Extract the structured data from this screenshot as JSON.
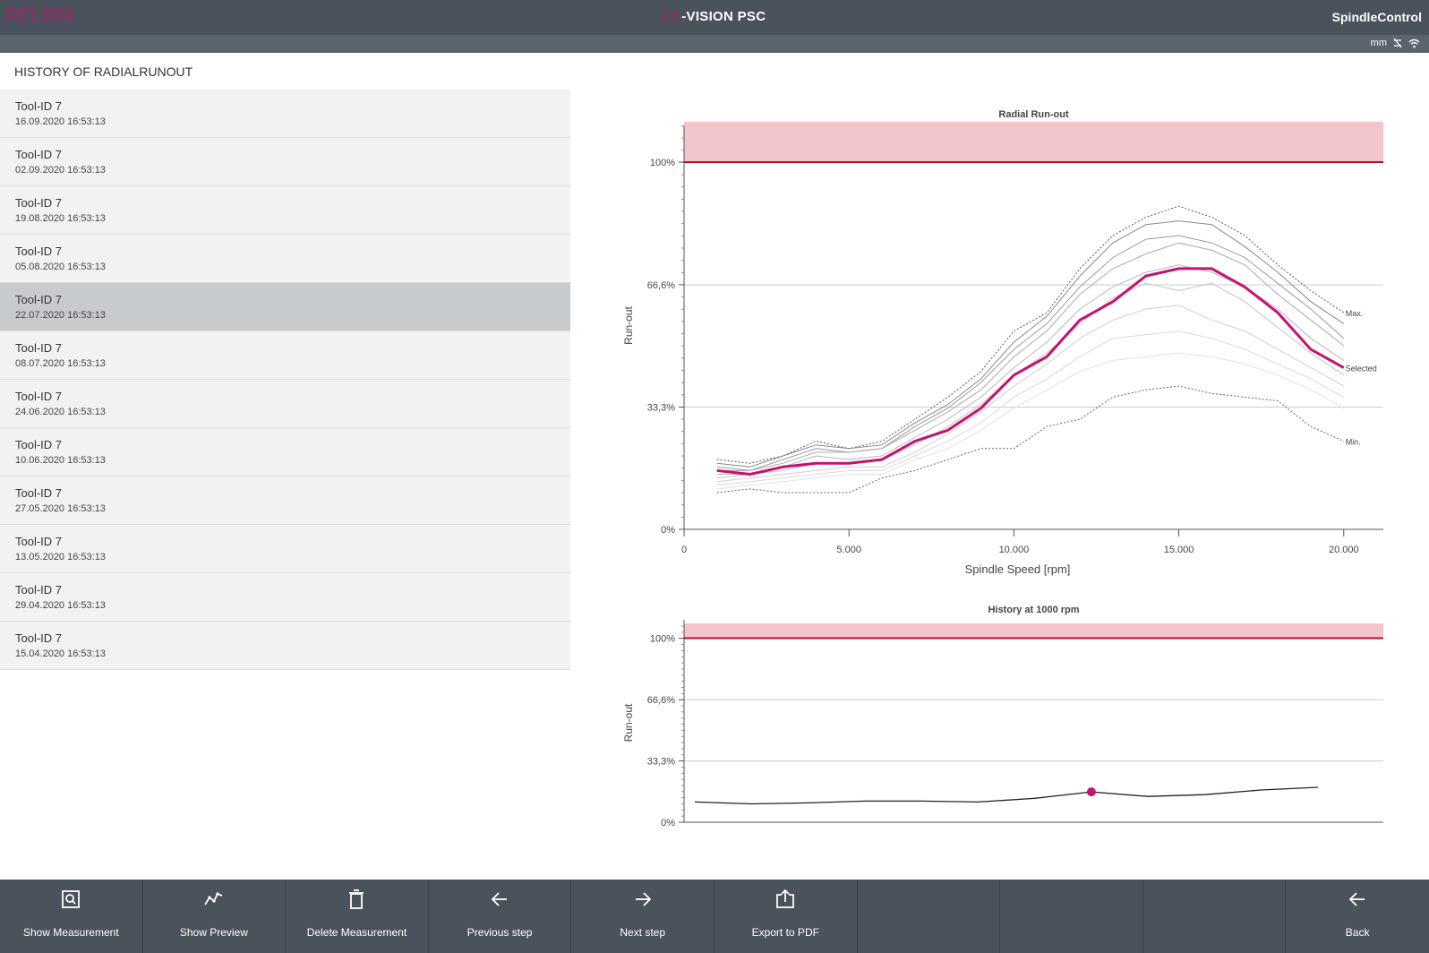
{
  "header": {
    "logo_text": "RELIMA",
    "title_accent": "LC",
    "title_main": "-VISION PSC",
    "brand": "SpindleControl"
  },
  "status": {
    "unit": "mm",
    "icons": [
      "no-connection-icon",
      "wifi-icon"
    ]
  },
  "history": {
    "title": "HISTORY OF RADIALRUNOUT",
    "selected_index": 4,
    "items": [
      {
        "name": "Tool-ID 7",
        "date": "16.09.2020 16:53:13"
      },
      {
        "name": "Tool-ID 7",
        "date": "02.09.2020 16:53:13"
      },
      {
        "name": "Tool-ID 7",
        "date": "19.08.2020 16:53:13"
      },
      {
        "name": "Tool-ID 7",
        "date": "05.08.2020 16:53:13"
      },
      {
        "name": "Tool-ID 7",
        "date": "22.07.2020 16:53:13"
      },
      {
        "name": "Tool-ID 7",
        "date": "08.07.2020 16:53:13"
      },
      {
        "name": "Tool-ID 7",
        "date": "24.06.2020 16:53:13"
      },
      {
        "name": "Tool-ID 7",
        "date": "10.06.2020 16:53:13"
      },
      {
        "name": "Tool-ID 7",
        "date": "27.05.2020 16:53:13"
      },
      {
        "name": "Tool-ID 7",
        "date": "13.05.2020 16:53:13"
      },
      {
        "name": "Tool-ID 7",
        "date": "29.04.2020 16:53:13"
      },
      {
        "name": "Tool-ID 7",
        "date": "15.04.2020 16:53:13"
      }
    ]
  },
  "chart_data": [
    {
      "type": "line",
      "title": "Radial Run-out",
      "xlabel": "Spindle Speed [rpm]",
      "ylabel": "Run-out",
      "xlim": [
        0,
        21200
      ],
      "ylim": [
        0,
        110
      ],
      "xticks": [
        0,
        5000,
        10000,
        15000,
        20000
      ],
      "xtick_labels": [
        "0",
        "5.000",
        "10.000",
        "15.000",
        "20.000"
      ],
      "yticks": [
        0,
        33.3,
        66.6,
        100
      ],
      "ytick_labels": [
        "0%",
        "33,3%",
        "66,6%",
        "100%"
      ],
      "limit": 100,
      "limit_band": [
        100,
        111
      ],
      "grid": true,
      "x": [
        1000,
        2000,
        3000,
        4000,
        5000,
        6000,
        7000,
        8000,
        9000,
        10000,
        11000,
        12000,
        13000,
        14000,
        15000,
        16000,
        17000,
        18000,
        19000,
        20000
      ],
      "selected_color": "#c4126e",
      "limit_color": "#c00a2a",
      "band_color": "#f2c5cb",
      "series": [
        {
          "name": "Max.",
          "style": "dotted",
          "color": "#555555",
          "values": [
            19,
            18,
            20,
            24,
            22,
            24,
            30,
            36,
            43,
            54,
            59,
            71,
            80,
            85,
            88,
            85,
            80,
            72,
            65,
            59
          ]
        },
        {
          "name": "",
          "style": "solid",
          "color": "#888888",
          "values": [
            18,
            17,
            20,
            23,
            22,
            23,
            29,
            34,
            41,
            51,
            58,
            69,
            78,
            83,
            84,
            83,
            77,
            70,
            62,
            56
          ]
        },
        {
          "name": "",
          "style": "solid",
          "color": "#9a9a9a",
          "values": [
            17,
            16,
            19,
            22,
            21,
            22,
            28,
            33,
            40,
            49,
            56,
            66,
            74,
            79,
            80,
            78,
            74,
            67,
            60,
            52
          ]
        },
        {
          "name": "",
          "style": "solid",
          "color": "#aaaaaa",
          "values": [
            16,
            16,
            18,
            21,
            21,
            22,
            27,
            32,
            38,
            47,
            54,
            64,
            71,
            75,
            78,
            76,
            72,
            64,
            57,
            50
          ]
        },
        {
          "name": "",
          "style": "solid",
          "color": "#b8b8b8",
          "values": [
            15,
            15,
            17,
            20,
            19,
            20,
            25,
            30,
            36,
            44,
            51,
            60,
            66,
            70,
            72,
            70,
            66,
            60,
            52,
            46
          ]
        },
        {
          "name": "",
          "style": "solid",
          "color": "#c4c4c4",
          "values": [
            14,
            15,
            16,
            18,
            18,
            19,
            23,
            28,
            34,
            42,
            48,
            56,
            63,
            67,
            65,
            67,
            62,
            55,
            48,
            42
          ]
        },
        {
          "name": "",
          "style": "solid",
          "color": "#cfcfcf",
          "values": [
            13,
            14,
            15,
            16,
            17,
            17,
            21,
            26,
            32,
            39,
            45,
            52,
            57,
            60,
            61,
            57,
            54,
            49,
            44,
            39
          ]
        },
        {
          "name": "",
          "style": "solid",
          "color": "#d8d8d8",
          "values": [
            12,
            13,
            14,
            15,
            16,
            16,
            20,
            24,
            29,
            36,
            41,
            47,
            52,
            53,
            54,
            52,
            49,
            45,
            41,
            36
          ]
        },
        {
          "name": "",
          "style": "solid",
          "color": "#e2e2e2",
          "values": [
            11,
            12,
            13,
            14,
            15,
            15,
            19,
            22,
            27,
            33,
            38,
            43,
            46,
            47,
            48,
            47,
            45,
            42,
            38,
            33
          ]
        },
        {
          "name": "Min.",
          "style": "dotted",
          "color": "#666666",
          "values": [
            10,
            11,
            10,
            10,
            10,
            14,
            16,
            19,
            22,
            22,
            28,
            30,
            36,
            38,
            39,
            37,
            36,
            35,
            28,
            24
          ]
        },
        {
          "name": "Selected",
          "style": "selected",
          "color": "#c4126e",
          "values": [
            16,
            15,
            17,
            18,
            18,
            19,
            24,
            27,
            33,
            42,
            47,
            57,
            62,
            69,
            71,
            71,
            66,
            59,
            49,
            44
          ]
        }
      ]
    },
    {
      "type": "line",
      "title": "History at 1000 rpm",
      "ylabel": "Run-out",
      "ylim": [
        0,
        110
      ],
      "yticks": [
        0,
        33.3,
        66.6,
        100
      ],
      "ytick_labels": [
        "0%",
        "33,3%",
        "66,6%",
        "100%"
      ],
      "limit": 100,
      "limit_band": [
        100,
        108
      ],
      "grid": true,
      "x": [
        "15.04.2020",
        "29.04.2020",
        "13.05.2020",
        "27.05.2020",
        "10.06.2020",
        "24.06.2020",
        "08.07.2020",
        "22.07.2020",
        "05.08.2020",
        "19.08.2020",
        "02.09.2020",
        "16.09.2020"
      ],
      "values": [
        11,
        10,
        10.5,
        11.5,
        11.5,
        11,
        13,
        16.5,
        14,
        15,
        17.5,
        19
      ],
      "selected_index": 7,
      "line_color": "#222222",
      "marker_color": "#c4126e"
    }
  ],
  "toolbar": {
    "buttons": [
      {
        "label": "Show Measurement",
        "icon": "show-measurement-icon"
      },
      {
        "label": "Show Preview",
        "icon": "show-preview-icon"
      },
      {
        "label": "Delete Measurement",
        "icon": "trash-icon"
      },
      {
        "label": "Previous step",
        "icon": "arrow-left-icon"
      },
      {
        "label": "Next step",
        "icon": "arrow-right-icon"
      },
      {
        "label": "Export to PDF",
        "icon": "export-icon"
      },
      {
        "label": "",
        "icon": ""
      },
      {
        "label": "",
        "icon": ""
      },
      {
        "label": "",
        "icon": ""
      },
      {
        "label": "Back",
        "icon": "back-arrow-icon"
      }
    ]
  }
}
